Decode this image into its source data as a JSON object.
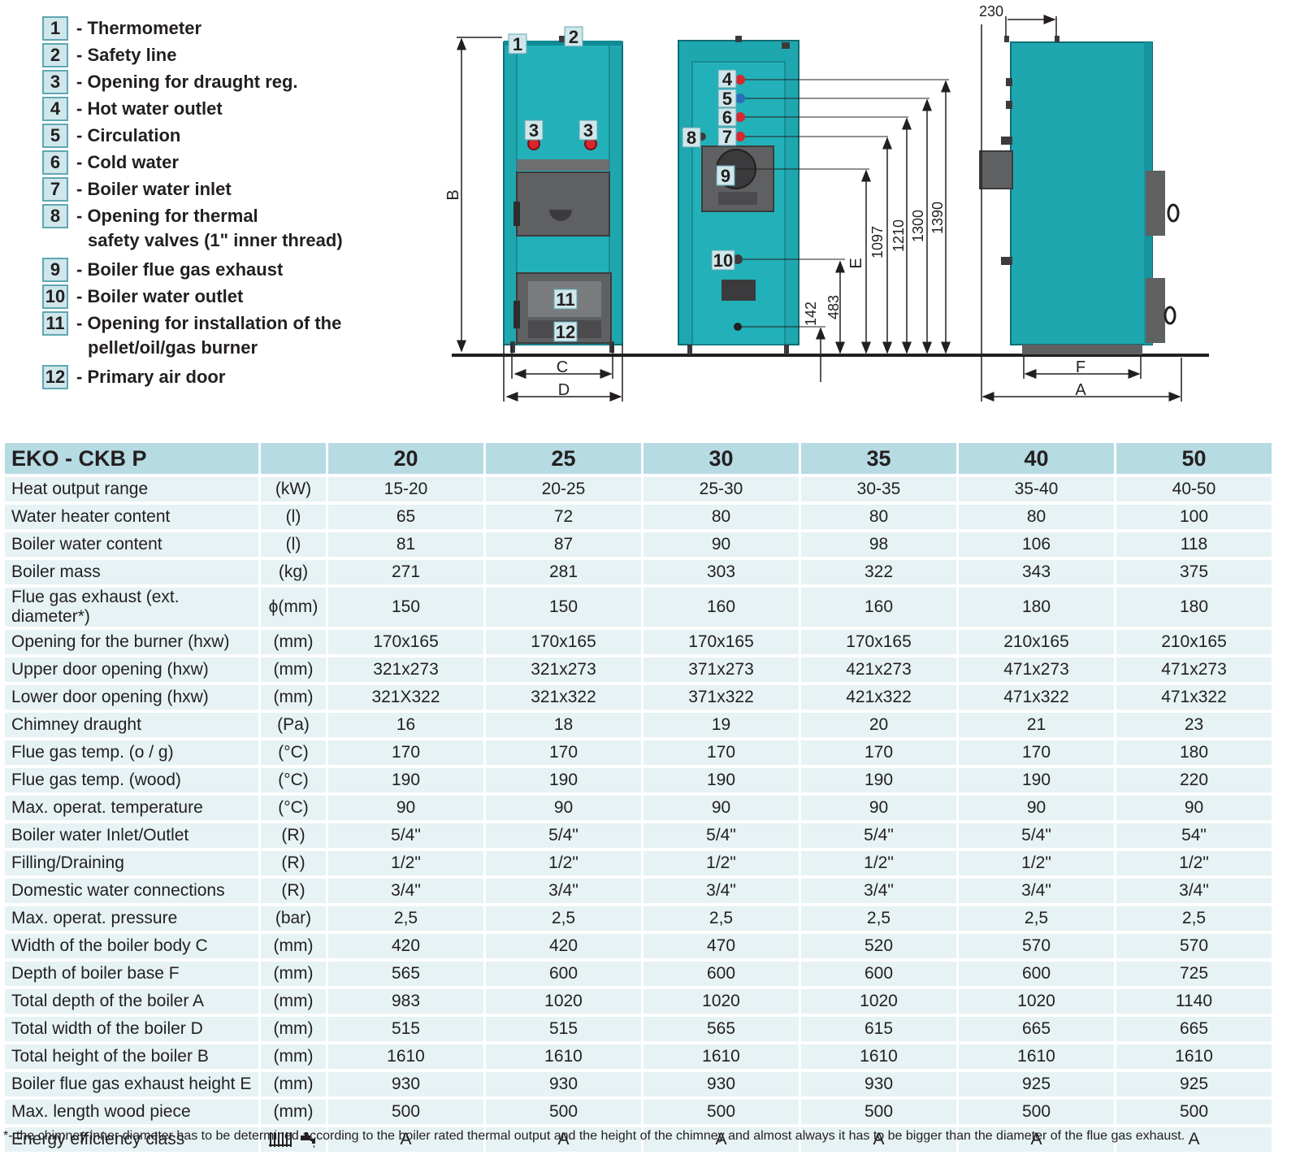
{
  "legend": [
    {
      "num": "1",
      "text": "- Thermometer"
    },
    {
      "num": "2",
      "text": "- Safety line"
    },
    {
      "num": "3",
      "text": "- Opening for draught reg."
    },
    {
      "num": "4",
      "text": "- Hot water outlet"
    },
    {
      "num": "5",
      "text": "- Circulation"
    },
    {
      "num": "6",
      "text": "- Cold water"
    },
    {
      "num": "7",
      "text": "- Boiler water inlet"
    },
    {
      "num": "8",
      "text": "- Opening for thermal",
      "text2": "safety valves (1\" inner thread)"
    },
    {
      "num": "9",
      "text": "- Boiler flue gas exhaust"
    },
    {
      "num": "10",
      "text": "- Boiler water outlet"
    },
    {
      "num": "11",
      "text": "- Opening for installation of the",
      "text2": "pellet/oil/gas burner"
    },
    {
      "num": "12",
      "text": "- Primary air door"
    }
  ],
  "drawing": {
    "labels": {
      "B": "B",
      "C": "C",
      "D": "D",
      "E": "E",
      "F": "F",
      "A": "A",
      "d230": "230",
      "d142": "142",
      "d483": "483",
      "d1097": "1097",
      "d1210": "1210",
      "d1300": "1300",
      "d1390": "1390"
    },
    "markers": [
      "1",
      "2",
      "3",
      "3",
      "4",
      "5",
      "6",
      "7",
      "8",
      "9",
      "10",
      "11",
      "12"
    ],
    "colors": {
      "body": "#1fa7b0",
      "door": "#5f6062",
      "red": "#d8262f",
      "blue": "#2a6fb7"
    }
  },
  "table": {
    "title": "EKO - CKB P",
    "columns": [
      "20",
      "25",
      "30",
      "35",
      "40",
      "50"
    ],
    "rows": [
      {
        "label": "Heat output range",
        "unit": "(kW)",
        "values": [
          "15-20",
          "20-25",
          "25-30",
          "30-35",
          "35-40",
          "40-50"
        ]
      },
      {
        "label": "Water heater content",
        "unit": "(l)",
        "values": [
          "65",
          "72",
          "80",
          "80",
          "80",
          "100"
        ]
      },
      {
        "label": "Boiler water content",
        "unit": "(l)",
        "values": [
          "81",
          "87",
          "90",
          "98",
          "106",
          "118"
        ]
      },
      {
        "label": "Boiler mass",
        "unit": "(kg)",
        "values": [
          "271",
          "281",
          "303",
          "322",
          "343",
          "375"
        ]
      },
      {
        "label": "Flue gas exhaust (ext. diameter*)",
        "unit": "ϕ(mm)",
        "values": [
          "150",
          "150",
          "160",
          "160",
          "180",
          "180"
        ]
      },
      {
        "label": "Opening for the burner (hxw)",
        "unit": "(mm)",
        "values": [
          "170x165",
          "170x165",
          "170x165",
          "170x165",
          "210x165",
          "210x165"
        ]
      },
      {
        "label": "Upper door opening (hxw)",
        "unit": "(mm)",
        "values": [
          "321x273",
          "321x273",
          "371x273",
          "421x273",
          "471x273",
          "471x273"
        ]
      },
      {
        "label": "Lower door opening (hxw)",
        "unit": "(mm)",
        "values": [
          "321X322",
          "321x322",
          "371x322",
          "421x322",
          "471x322",
          "471x322"
        ]
      },
      {
        "label": "Chimney draught",
        "unit": "(Pa)",
        "values": [
          "16",
          "18",
          "19",
          "20",
          "21",
          "23"
        ]
      },
      {
        "label": "Flue gas temp. (o / g)",
        "unit": "(°C)",
        "values": [
          "170",
          "170",
          "170",
          "170",
          "170",
          "180"
        ]
      },
      {
        "label": "Flue gas temp. (wood)",
        "unit": "(°C)",
        "values": [
          "190",
          "190",
          "190",
          "190",
          "190",
          "220"
        ]
      },
      {
        "label": "Max. operat. temperature",
        "unit": "(°C)",
        "values": [
          "90",
          "90",
          "90",
          "90",
          "90",
          "90"
        ]
      },
      {
        "label": "Boiler water Inlet/Outlet",
        "unit": "(R)",
        "values": [
          "5/4\"",
          "5/4\"",
          "5/4\"",
          "5/4\"",
          "5/4\"",
          "54\""
        ]
      },
      {
        "label": "Filling/Draining",
        "unit": "(R)",
        "values": [
          "1/2\"",
          "1/2\"",
          "1/2\"",
          "1/2\"",
          "1/2\"",
          "1/2\""
        ]
      },
      {
        "label": "Domestic water connections",
        "unit": "(R)",
        "values": [
          "3/4\"",
          "3/4\"",
          "3/4\"",
          "3/4\"",
          "3/4\"",
          "3/4\""
        ]
      },
      {
        "label": "Max. operat. pressure",
        "unit": "(bar)",
        "values": [
          "2,5",
          "2,5",
          "2,5",
          "2,5",
          "2,5",
          "2,5"
        ]
      },
      {
        "label": "Width of the boiler body C",
        "unit": "(mm)",
        "values": [
          "420",
          "420",
          "470",
          "520",
          "570",
          "570"
        ]
      },
      {
        "label": "Depth of boiler base F",
        "unit": "(mm)",
        "values": [
          "565",
          "600",
          "600",
          "600",
          "600",
          "725"
        ]
      },
      {
        "label": "Total depth of the boiler A",
        "unit": "(mm)",
        "values": [
          "983",
          "1020",
          "1020",
          "1020",
          "1020",
          "1140"
        ]
      },
      {
        "label": "Total width of the boiler D",
        "unit": "(mm)",
        "values": [
          "515",
          "515",
          "565",
          "615",
          "665",
          "665"
        ]
      },
      {
        "label": "Total height of the boiler B",
        "unit": "(mm)",
        "values": [
          "1610",
          "1610",
          "1610",
          "1610",
          "1610",
          "1610"
        ]
      },
      {
        "label": "Boiler flue gas exhaust height E",
        "unit": "(mm)",
        "values": [
          "930",
          "930",
          "930",
          "930",
          "925",
          "925"
        ]
      },
      {
        "label": "Max. length wood piece",
        "unit": "(mm)",
        "values": [
          "500",
          "500",
          "500",
          "500",
          "500",
          "500"
        ]
      }
    ],
    "energy_row": {
      "label": "Energy efficiency class",
      "icons": [
        "radiator-icon",
        "tap-icon"
      ],
      "values": [
        "A",
        "A",
        "A",
        "A",
        "A",
        "A"
      ]
    },
    "header_color": "#b7dbe2",
    "cell_color": "#e6f2f4"
  },
  "footnote": "*- the chimney inner diameter has to be determined according to the boiler rated thermal output and the height of the chimney and almost always it has to be bigger than the diameter of the flue gas exhaust."
}
